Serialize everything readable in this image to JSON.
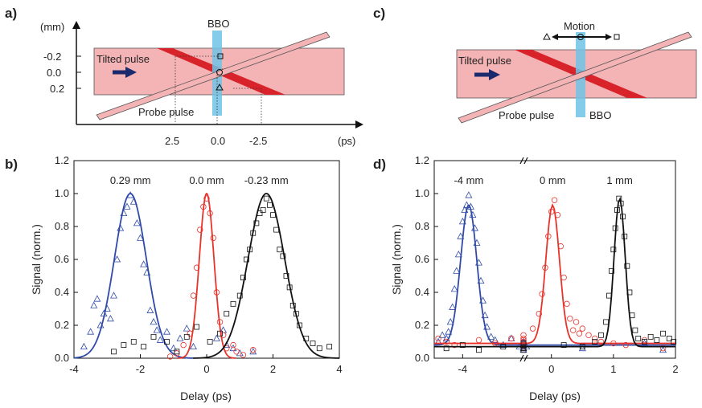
{
  "panels": {
    "a": {
      "label": "a)",
      "unit_y": "(mm)",
      "unit_x": "(ps)",
      "y_ticks": [
        "-0.2",
        "0.0",
        "0.2"
      ],
      "x_ticks": [
        "2.5",
        "0.0",
        "-2.5"
      ],
      "tilted_label": "Tilted pulse",
      "probe_label": "Probe pulse",
      "crystal_label": "BBO"
    },
    "b": {
      "label": "b)"
    },
    "c": {
      "label": "c)",
      "motion_label": "Motion",
      "tilted_label": "Tilted pulse",
      "probe_label": "Probe pulse",
      "crystal_label": "BBO"
    },
    "d": {
      "label": "d)"
    }
  },
  "colors": {
    "blue": "#2f4aa8",
    "red": "#e8322a",
    "black": "#111111",
    "pink": "#f4b3b5",
    "dark_red": "#d8232a",
    "cyan": "#6ec3e6",
    "arrow_navy": "#1a2a6c"
  },
  "chart_data": [
    {
      "type": "scatter",
      "panel": "b",
      "xlabel": "Delay (ps)",
      "ylabel": "Signal (norm.)",
      "xlim": [
        -4,
        4
      ],
      "ylim": [
        0,
        1.2
      ],
      "x_ticks": [
        -4,
        -2,
        0,
        2,
        4
      ],
      "y_ticks": [
        0.0,
        0.2,
        0.4,
        0.6,
        0.8,
        1.0,
        1.2
      ],
      "series": [
        {
          "name": "0.29 mm",
          "color": "#2f4aa8",
          "marker": "triangle",
          "center": -2.3,
          "sigma": 0.48,
          "amplitude": 1.0,
          "points": [
            [
              -3.7,
              0.07
            ],
            [
              -3.5,
              0.16
            ],
            [
              -3.4,
              0.32
            ],
            [
              -3.3,
              0.36
            ],
            [
              -3.2,
              0.2
            ],
            [
              -3.1,
              0.27
            ],
            [
              -3.0,
              0.3
            ],
            [
              -2.9,
              0.24
            ],
            [
              -2.8,
              0.38
            ],
            [
              -2.7,
              0.6
            ],
            [
              -2.6,
              0.79
            ],
            [
              -2.5,
              0.88
            ],
            [
              -2.4,
              0.92
            ],
            [
              -2.3,
              0.99
            ],
            [
              -2.2,
              0.95
            ],
            [
              -2.1,
              0.82
            ],
            [
              -2.0,
              0.73
            ],
            [
              -1.9,
              0.57
            ],
            [
              -1.8,
              0.52
            ],
            [
              -1.7,
              0.29
            ],
            [
              -1.6,
              0.22
            ],
            [
              -1.5,
              0.17
            ],
            [
              -1.4,
              0.11
            ],
            [
              -1.2,
              0.16
            ],
            [
              -1.0,
              0.06
            ],
            [
              -0.8,
              0.12
            ],
            [
              -0.6,
              0.18
            ],
            [
              -0.4,
              0.07
            ],
            [
              0.3,
              0.12
            ],
            [
              0.5,
              0.17
            ],
            [
              0.6,
              0.08
            ],
            [
              0.8,
              0.06
            ],
            [
              1.0,
              0.03
            ],
            [
              1.4,
              0.04
            ]
          ]
        },
        {
          "name": "0.0 mm",
          "color": "#e8322a",
          "marker": "circle",
          "center": 0.0,
          "sigma": 0.22,
          "amplitude": 1.0,
          "points": [
            [
              -1.1,
              0.01
            ],
            [
              -0.9,
              0.03
            ],
            [
              -0.7,
              0.08
            ],
            [
              -0.5,
              0.15
            ],
            [
              -0.4,
              0.38
            ],
            [
              -0.3,
              0.55
            ],
            [
              -0.2,
              0.78
            ],
            [
              -0.1,
              0.92
            ],
            [
              0.0,
              0.97
            ],
            [
              0.1,
              0.88
            ],
            [
              0.2,
              0.73
            ],
            [
              0.3,
              0.4
            ],
            [
              0.4,
              0.22
            ],
            [
              0.5,
              0.14
            ],
            [
              0.6,
              0.06
            ],
            [
              0.8,
              0.08
            ],
            [
              0.9,
              0.04
            ],
            [
              1.1,
              0.02
            ],
            [
              1.4,
              0.05
            ]
          ]
        },
        {
          "name": "-0.23 mm",
          "color": "#111111",
          "marker": "square",
          "center": 1.8,
          "sigma": 0.55,
          "amplitude": 1.0,
          "points": [
            [
              -2.8,
              0.04
            ],
            [
              -2.5,
              0.08
            ],
            [
              -2.2,
              0.1
            ],
            [
              -1.9,
              0.07
            ],
            [
              -1.6,
              0.13
            ],
            [
              -1.2,
              0.1
            ],
            [
              -0.9,
              0.04
            ],
            [
              -0.6,
              0.13
            ],
            [
              -0.3,
              0.19
            ],
            [
              0.1,
              0.1
            ],
            [
              0.4,
              0.15
            ],
            [
              0.6,
              0.27
            ],
            [
              0.8,
              0.33
            ],
            [
              1.0,
              0.38
            ],
            [
              1.1,
              0.49
            ],
            [
              1.2,
              0.6
            ],
            [
              1.3,
              0.66
            ],
            [
              1.4,
              0.76
            ],
            [
              1.5,
              0.82
            ],
            [
              1.6,
              0.88
            ],
            [
              1.7,
              0.9
            ],
            [
              1.8,
              0.97
            ],
            [
              1.9,
              0.93
            ],
            [
              2.0,
              0.87
            ],
            [
              2.1,
              0.78
            ],
            [
              2.2,
              0.66
            ],
            [
              2.3,
              0.62
            ],
            [
              2.4,
              0.5
            ],
            [
              2.5,
              0.43
            ],
            [
              2.6,
              0.32
            ],
            [
              2.7,
              0.27
            ],
            [
              2.8,
              0.2
            ],
            [
              3.0,
              0.12
            ],
            [
              3.2,
              0.09
            ],
            [
              3.4,
              0.06
            ],
            [
              3.7,
              0.07
            ]
          ]
        }
      ],
      "annotations": [
        "0.29 mm",
        "0.0 mm",
        "-0.23 mm"
      ]
    },
    {
      "type": "scatter",
      "panel": "d",
      "xlabel": "Delay (ps)",
      "ylabel": "Signal (norm.)",
      "xlim": [
        -4.7,
        2
      ],
      "ylim": [
        0,
        1.2
      ],
      "x_ticks": [
        -4,
        0,
        1,
        2
      ],
      "y_ticks": [
        0.0,
        0.2,
        0.4,
        0.6,
        0.8,
        1.0,
        1.2
      ],
      "axis_break": true,
      "series": [
        {
          "name": "-4 mm",
          "color": "#2f4aa8",
          "marker": "triangle",
          "center": -3.85,
          "sigma": 0.2,
          "amplitude": 0.85,
          "baseline": 0.08,
          "points": [
            [
              -4.6,
              0.1
            ],
            [
              -4.5,
              0.14
            ],
            [
              -4.4,
              0.12
            ],
            [
              -4.35,
              0.16
            ],
            [
              -4.3,
              0.22
            ],
            [
              -4.25,
              0.31
            ],
            [
              -4.2,
              0.42
            ],
            [
              -4.15,
              0.53
            ],
            [
              -4.1,
              0.63
            ],
            [
              -4.05,
              0.74
            ],
            [
              -4.0,
              0.83
            ],
            [
              -3.95,
              0.9
            ],
            [
              -3.9,
              0.93
            ],
            [
              -3.85,
              0.99
            ],
            [
              -3.8,
              0.92
            ],
            [
              -3.75,
              0.87
            ],
            [
              -3.7,
              0.79
            ],
            [
              -3.65,
              0.7
            ],
            [
              -3.6,
              0.58
            ],
            [
              -3.55,
              0.47
            ],
            [
              -3.5,
              0.35
            ],
            [
              -3.45,
              0.26
            ],
            [
              -3.4,
              0.19
            ],
            [
              -3.3,
              0.13
            ],
            [
              -3.2,
              0.11
            ],
            [
              -3.0,
              0.08
            ],
            [
              -2.8,
              0.12
            ],
            [
              -2.6,
              0.07
            ],
            [
              -2.4,
              0.1
            ],
            [
              -2.2,
              0.06
            ],
            [
              -1.8,
              0.09
            ],
            [
              -1.6,
              0.06
            ],
            [
              -1.2,
              0.08
            ],
            [
              -0.8,
              0.05
            ],
            [
              -0.4,
              0.07
            ],
            [
              0.5,
              0.06
            ],
            [
              1.5,
              0.09
            ],
            [
              1.8,
              0.05
            ]
          ]
        },
        {
          "name": "0 mm",
          "color": "#e8322a",
          "marker": "circle",
          "center": 0.02,
          "sigma": 0.11,
          "amplitude": 0.84,
          "baseline": 0.09,
          "points": [
            [
              -4.6,
              0.12
            ],
            [
              -4.4,
              0.1
            ],
            [
              -4.2,
              0.08
            ],
            [
              -3.6,
              0.11
            ],
            [
              -3.2,
              0.09
            ],
            [
              -2.8,
              0.12
            ],
            [
              -2.4,
              0.07
            ],
            [
              -2.0,
              0.1
            ],
            [
              -1.6,
              0.08
            ],
            [
              -1.2,
              0.11
            ],
            [
              -0.8,
              0.14
            ],
            [
              -0.5,
              0.12
            ],
            [
              -0.3,
              0.18
            ],
            [
              -0.2,
              0.27
            ],
            [
              -0.15,
              0.39
            ],
            [
              -0.1,
              0.55
            ],
            [
              -0.05,
              0.74
            ],
            [
              0.0,
              0.89
            ],
            [
              0.05,
              0.96
            ],
            [
              0.1,
              0.87
            ],
            [
              0.15,
              0.68
            ],
            [
              0.2,
              0.49
            ],
            [
              0.25,
              0.33
            ],
            [
              0.3,
              0.24
            ],
            [
              0.35,
              0.17
            ],
            [
              0.4,
              0.22
            ],
            [
              0.45,
              0.15
            ],
            [
              0.5,
              0.18
            ],
            [
              0.6,
              0.14
            ],
            [
              0.7,
              0.12
            ],
            [
              0.8,
              0.1
            ],
            [
              1.0,
              0.09
            ],
            [
              1.2,
              0.08
            ],
            [
              1.5,
              0.11
            ],
            [
              1.8,
              0.06
            ]
          ]
        },
        {
          "name": "1 mm",
          "color": "#111111",
          "marker": "square",
          "center": 1.1,
          "sigma": 0.09,
          "amplitude": 0.9,
          "baseline": 0.07,
          "points": [
            [
              -4.4,
              0.06
            ],
            [
              -4.0,
              0.08
            ],
            [
              -3.6,
              0.05
            ],
            [
              -3.0,
              0.07
            ],
            [
              -2.5,
              0.06
            ],
            [
              -2.0,
              0.09
            ],
            [
              -1.5,
              0.05
            ],
            [
              -1.0,
              0.07
            ],
            [
              -0.5,
              0.06
            ],
            [
              0.2,
              0.08
            ],
            [
              0.5,
              0.07
            ],
            [
              0.7,
              0.1
            ],
            [
              0.8,
              0.14
            ],
            [
              0.88,
              0.22
            ],
            [
              0.93,
              0.38
            ],
            [
              0.97,
              0.53
            ],
            [
              1.0,
              0.66
            ],
            [
              1.03,
              0.79
            ],
            [
              1.06,
              0.9
            ],
            [
              1.09,
              0.97
            ],
            [
              1.12,
              0.94
            ],
            [
              1.15,
              0.86
            ],
            [
              1.18,
              0.74
            ],
            [
              1.22,
              0.56
            ],
            [
              1.26,
              0.4
            ],
            [
              1.3,
              0.26
            ],
            [
              1.35,
              0.17
            ],
            [
              1.4,
              0.12
            ],
            [
              1.5,
              0.1
            ],
            [
              1.6,
              0.13
            ],
            [
              1.7,
              0.11
            ],
            [
              1.8,
              0.15
            ],
            [
              1.9,
              0.12
            ],
            [
              1.97,
              0.1
            ]
          ]
        }
      ],
      "annotations": [
        "-4 mm",
        "0 mm",
        "1 mm"
      ]
    }
  ]
}
